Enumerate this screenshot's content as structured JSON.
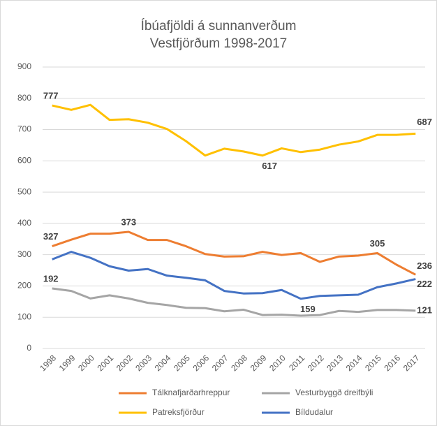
{
  "chart_data": {
    "type": "line",
    "title": [
      "Íbúafjöldi á sunnanverðum",
      "Vestfjörðum 1998-2017"
    ],
    "categories": [
      "1998",
      "1999",
      "2000",
      "2001",
      "2002",
      "2003",
      "2004",
      "2005",
      "2006",
      "2007",
      "2008",
      "2009",
      "2010",
      "2011",
      "2012",
      "2013",
      "2014",
      "2015",
      "2016",
      "2017"
    ],
    "ylim": [
      0,
      900
    ],
    "yticks": [
      0,
      100,
      200,
      300,
      400,
      500,
      600,
      700,
      800,
      900
    ],
    "grid": true,
    "legend": "bottom",
    "series": [
      {
        "name": "Tálknafjarðarhreppur",
        "color": "#ed7d31",
        "values": [
          327,
          348,
          367,
          367,
          373,
          347,
          347,
          327,
          302,
          294,
          295,
          309,
          299,
          305,
          277,
          294,
          297,
          305,
          268,
          236
        ],
        "value_labels": [
          "327",
          null,
          null,
          null,
          "373",
          null,
          null,
          null,
          null,
          null,
          null,
          null,
          null,
          null,
          null,
          null,
          null,
          "305",
          null,
          "236"
        ]
      },
      {
        "name": "Vesturbyggð dreifbýli",
        "color": "#a5a5a5",
        "values": [
          192,
          184,
          160,
          170,
          160,
          146,
          139,
          130,
          129,
          119,
          124,
          107,
          108,
          105,
          107,
          120,
          117,
          123,
          123,
          121
        ],
        "value_labels": [
          "192",
          null,
          null,
          null,
          null,
          null,
          null,
          null,
          null,
          null,
          null,
          null,
          null,
          null,
          null,
          null,
          null,
          null,
          null,
          "121"
        ]
      },
      {
        "name": "Patreksfjörður",
        "color": "#ffc000",
        "values": [
          777,
          763,
          779,
          731,
          733,
          722,
          702,
          663,
          617,
          639,
          630,
          617,
          640,
          628,
          636,
          652,
          662,
          683,
          683,
          687
        ],
        "value_labels": [
          "777",
          null,
          null,
          null,
          null,
          null,
          null,
          null,
          null,
          null,
          null,
          "617",
          null,
          null,
          null,
          null,
          null,
          null,
          null,
          "687"
        ]
      },
      {
        "name": "Bíldudalur",
        "color": "#4472c4",
        "values": [
          285,
          309,
          290,
          263,
          249,
          254,
          233,
          226,
          218,
          184,
          176,
          177,
          187,
          159,
          168,
          170,
          172,
          196,
          208,
          222
        ],
        "value_labels": [
          null,
          null,
          null,
          null,
          null,
          null,
          null,
          null,
          null,
          null,
          null,
          null,
          null,
          "159",
          null,
          null,
          null,
          null,
          null,
          "222"
        ]
      }
    ]
  }
}
